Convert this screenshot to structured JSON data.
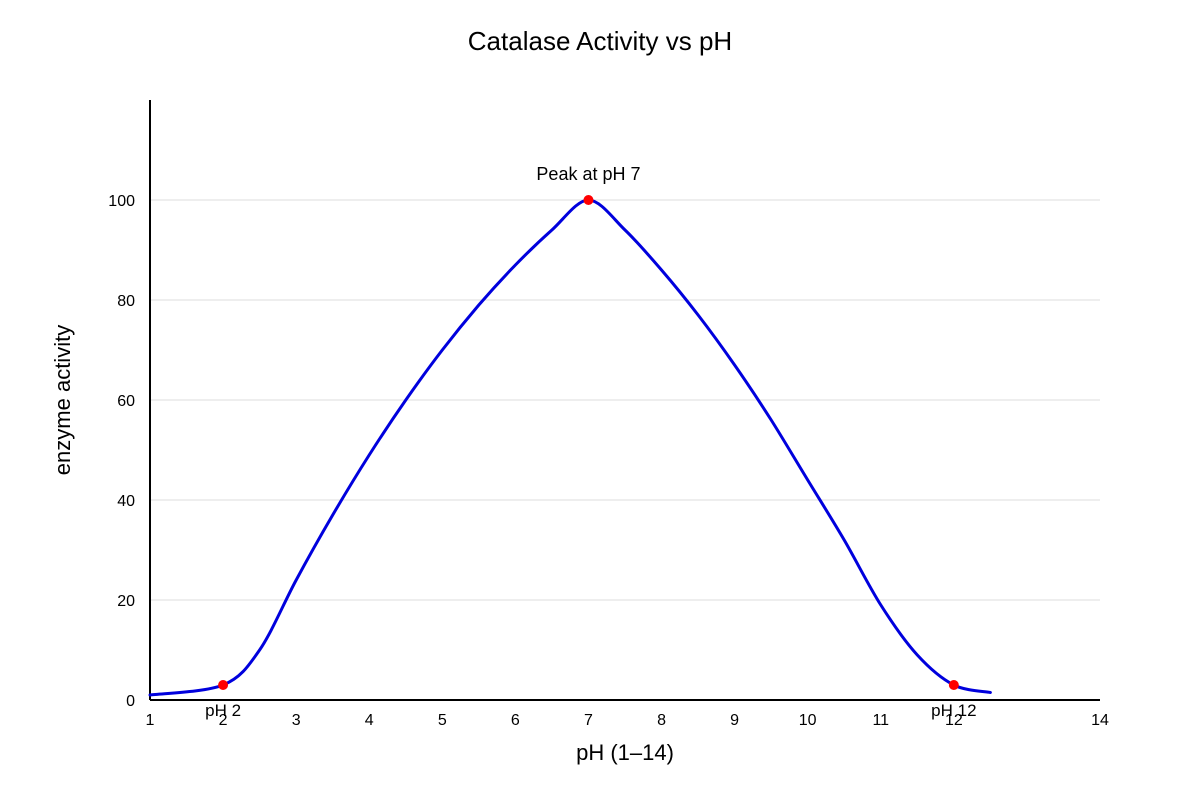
{
  "chart_data": {
    "type": "line",
    "title": "Catalase Activity vs pH",
    "xlabel": "pH (1–14)",
    "ylabel": "enzyme activity",
    "xlim": [
      1,
      14
    ],
    "ylim": [
      0,
      120
    ],
    "x_ticks": [
      1,
      2,
      3,
      4,
      5,
      6,
      7,
      8,
      9,
      10,
      11,
      12,
      14
    ],
    "y_ticks": [
      0,
      20,
      40,
      60,
      80,
      100
    ],
    "grid": true,
    "legend": "none",
    "series": [
      {
        "color": "#0000dd",
        "x": [
          1,
          2,
          2.5,
          3,
          3.5,
          4,
          4.5,
          5,
          5.5,
          6,
          6.5,
          7,
          7.5,
          8,
          8.5,
          9,
          9.5,
          10,
          10.5,
          11,
          11.5,
          12,
          12.5
        ],
        "y": [
          1,
          3,
          10,
          24,
          37,
          49,
          60,
          70,
          79,
          87,
          94,
          100,
          94,
          86,
          77,
          67,
          56,
          44,
          32,
          19,
          9,
          3,
          1.5
        ]
      }
    ],
    "markers": [
      {
        "x": 2,
        "y": 3,
        "label": "pH 2",
        "color": "#ff0000"
      },
      {
        "x": 7,
        "y": 100,
        "label": "Peak at pH 7",
        "color": "#ff0000"
      },
      {
        "x": 12,
        "y": 3,
        "label": "pH 12",
        "color": "#ff0000"
      }
    ]
  }
}
